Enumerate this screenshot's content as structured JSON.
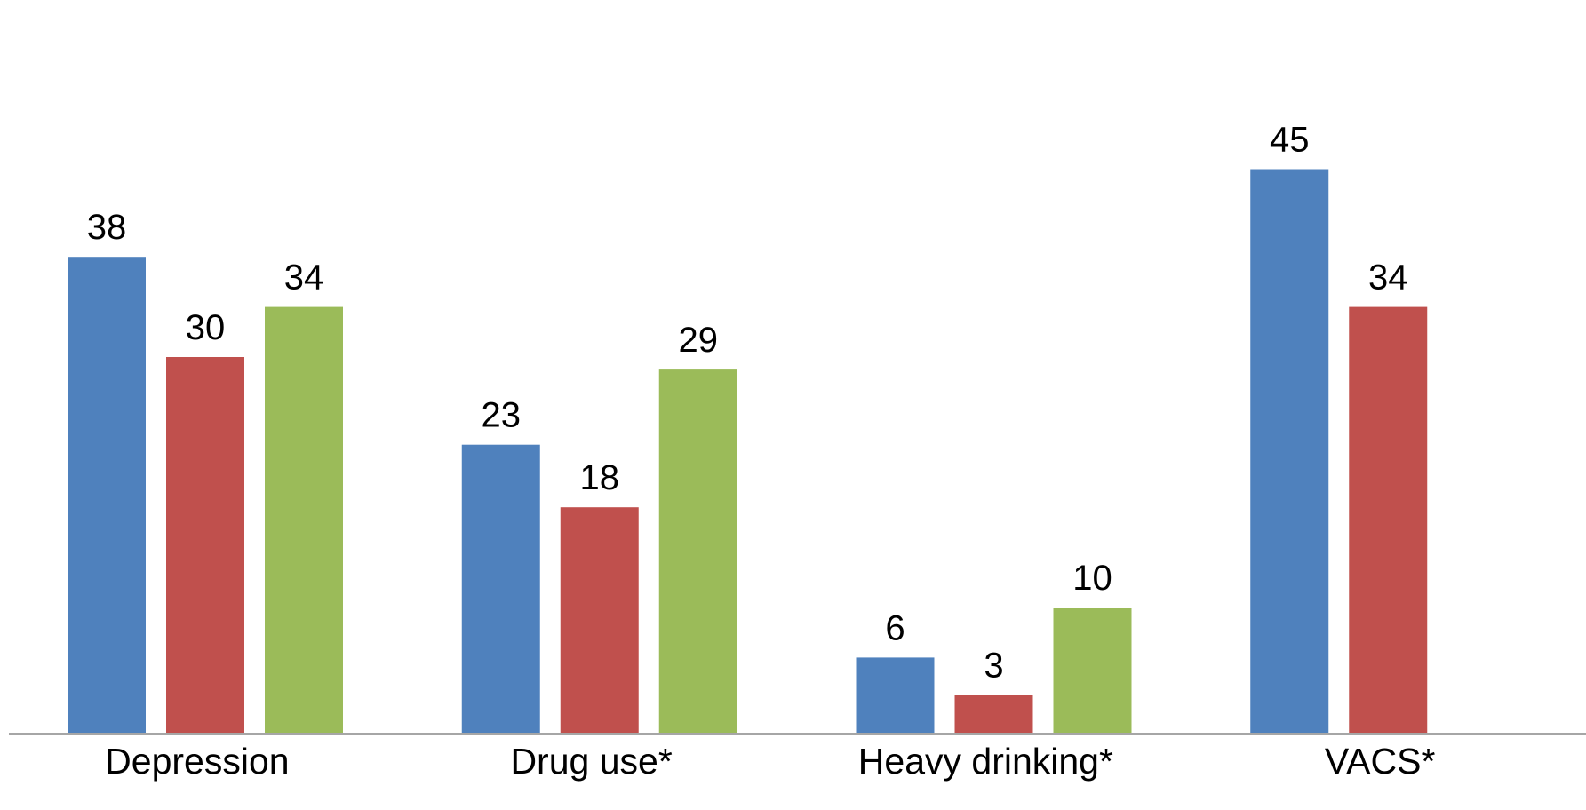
{
  "chart_data": {
    "type": "bar",
    "title": "",
    "xlabel": "",
    "ylabel": "",
    "categories": [
      "Depression",
      "Drug use*",
      "Heavy drinking*",
      "VACS*"
    ],
    "series": [
      {
        "values": [
          38,
          23,
          6,
          45
        ],
        "color": "#4F81BD"
      },
      {
        "values": [
          30,
          18,
          3,
          34
        ],
        "color": "#C0504D"
      },
      {
        "values": [
          34,
          29,
          10,
          null
        ],
        "color": "#9BBB59"
      }
    ],
    "ylim": [
      0,
      49
    ],
    "grid": false,
    "legend": "none",
    "axis_color": "#A6A6A6"
  }
}
